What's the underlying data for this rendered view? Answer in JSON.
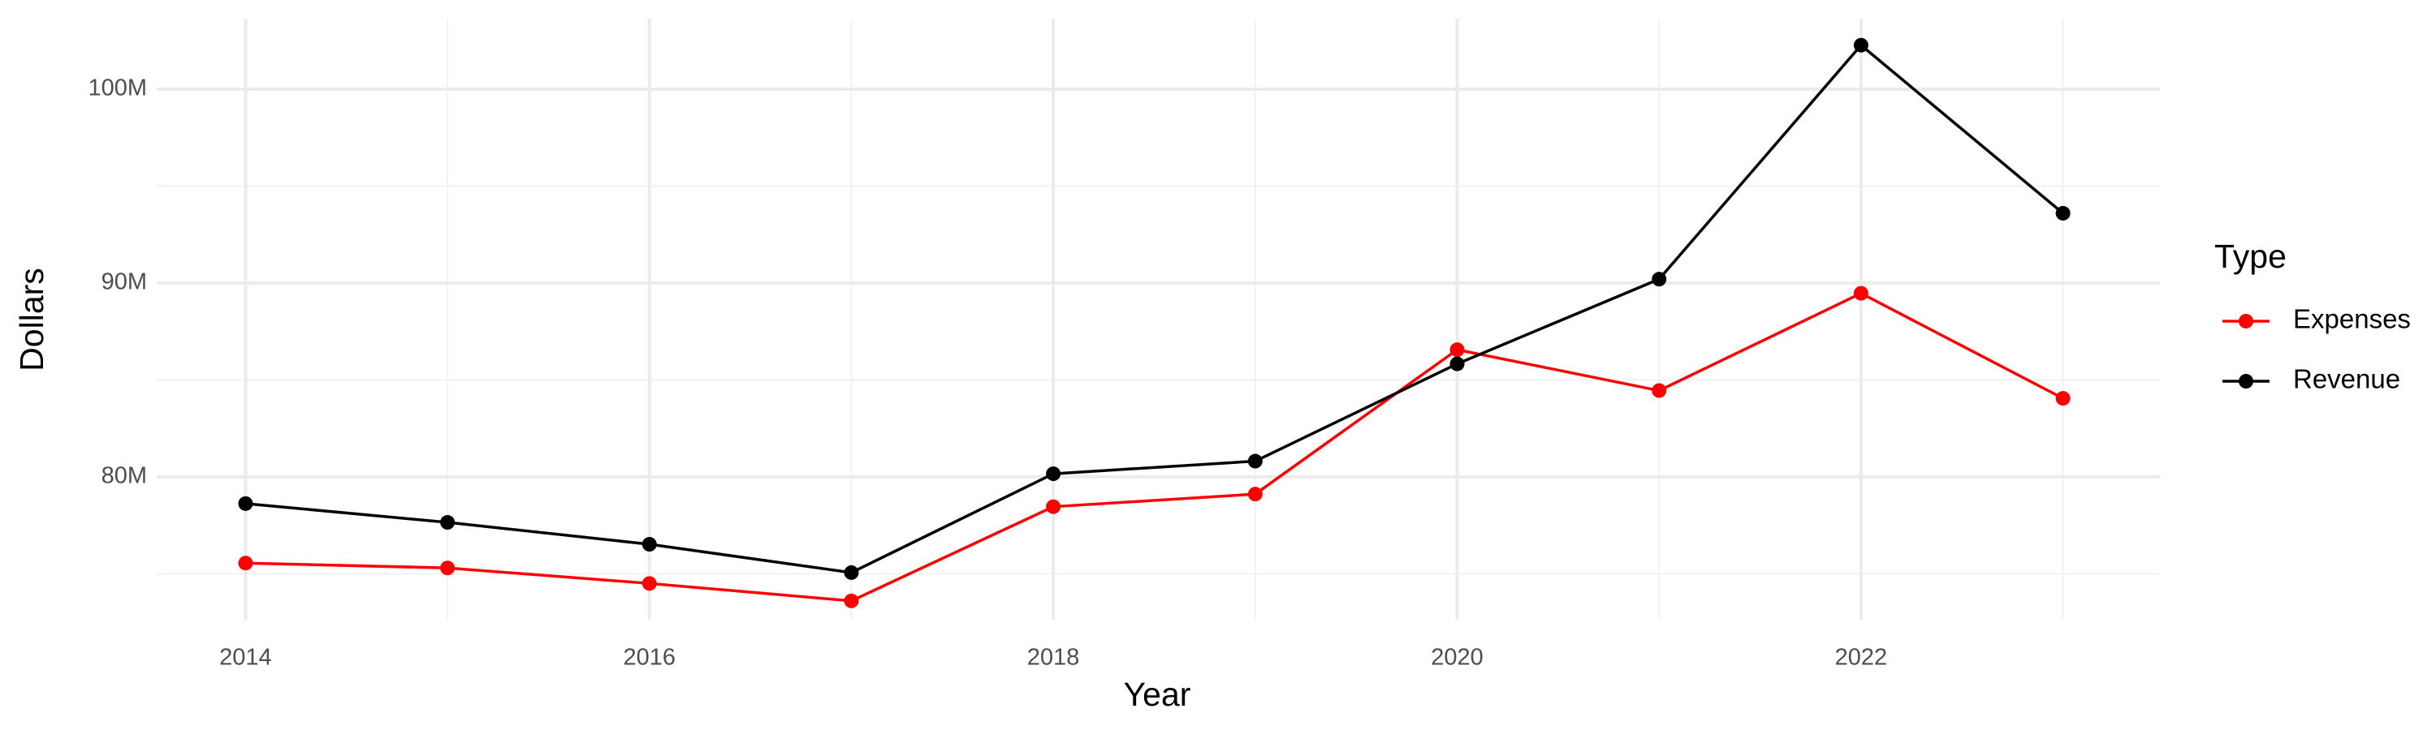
{
  "chart_data": {
    "type": "line",
    "x_label": "Year",
    "y_label": "Dollars",
    "legend_title": "Type",
    "x": [
      2014,
      2015,
      2016,
      2017,
      2018,
      2019,
      2020,
      2021,
      2022,
      2023
    ],
    "series": [
      {
        "name": "Expenses",
        "color": "#ff0000",
        "values": [
          75550000,
          75300000,
          74500000,
          73600000,
          78460000,
          79110000,
          86560000,
          84450000,
          89470000,
          84050000
        ]
      },
      {
        "name": "Revenue",
        "color": "#000000",
        "values": [
          78620000,
          77650000,
          76520000,
          75060000,
          80160000,
          80810000,
          85830000,
          90200000,
          102270000,
          93600000
        ]
      }
    ],
    "xlim": [
      2013.56,
      2023.48
    ],
    "xticks": [
      2014,
      2016,
      2018,
      2020,
      2022
    ],
    "ylim": [
      72630000,
      103640000
    ],
    "yticks": [
      {
        "value": 80000000,
        "label": "80M"
      },
      {
        "value": 90000000,
        "label": "90M"
      },
      {
        "value": 100000000,
        "label": "100M"
      }
    ],
    "grid": true,
    "legend": "right"
  }
}
